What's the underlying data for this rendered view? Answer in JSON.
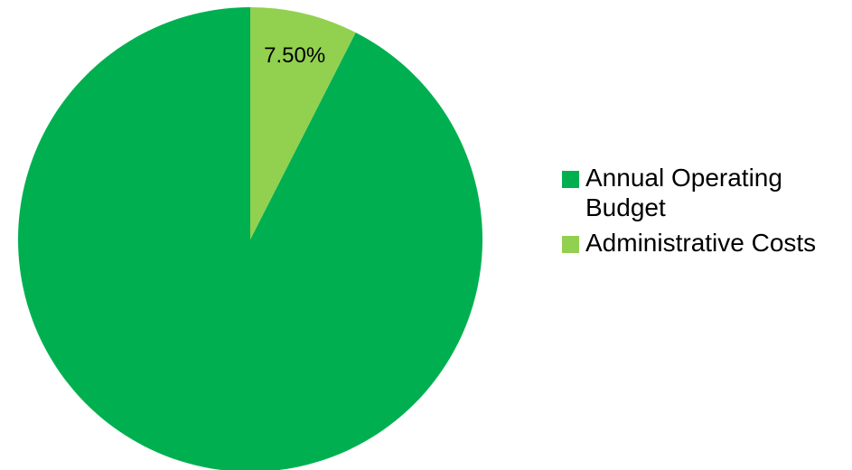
{
  "chart_data": {
    "type": "pie",
    "slices": [
      {
        "label": "Annual Operating Budget",
        "value": 92.5,
        "color": "#00b050",
        "data_label": ""
      },
      {
        "label": "Administrative Costs",
        "value": 7.5,
        "color": "#92d050",
        "data_label": "7.50%"
      }
    ],
    "start_angle_deg": 0,
    "direction": "counterclockwise",
    "legend_position": "right"
  },
  "legend": {
    "items": [
      {
        "label": "Annual Operating Budget",
        "color": "#00b050"
      },
      {
        "label": "Administrative Costs",
        "color": "#92d050"
      }
    ]
  }
}
